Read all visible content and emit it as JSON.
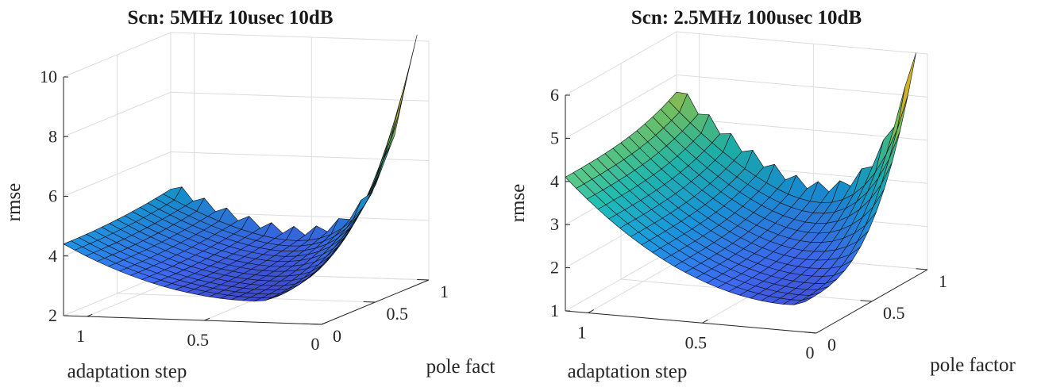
{
  "figure": {
    "background": "#ffffff",
    "colormap": "parula",
    "colormap_stops": [
      "#3e26a8",
      "#3f6bf4",
      "#1a9ae1",
      "#20bfb5",
      "#7ad06c",
      "#e3c52c",
      "#f9fb15"
    ]
  },
  "chart_data": [
    {
      "type": "surface",
      "title": "Scn: 5MHz 10usec 10dB",
      "xlabel": "adaptation step",
      "ylabel": "pole fact",
      "zlabel": "rmse",
      "xlim": [
        0,
        1.1
      ],
      "ylim": [
        0,
        1
      ],
      "zlim": [
        2,
        10
      ],
      "x_ticks": [
        "1",
        "0.5",
        "0"
      ],
      "y_ticks": [
        "0",
        "0.5",
        "1"
      ],
      "z_ticks": [
        "2",
        "4",
        "6",
        "8",
        "10"
      ],
      "grid": true,
      "surface_model": {
        "adaptation_step_range": [
          0.05,
          1.1
        ],
        "pole_factor_range": [
          0,
          1
        ],
        "rmse_at_pole_factor_0": {
          "at_step_1.1": 4.4,
          "minimum": 2.7,
          "at_step_0": 3.9
        },
        "rmse_growth_toward_pole_factor_1": {
          "at_step_1.1": 0.35,
          "at_step_0": 6.3
        },
        "zigzag_amplitude": 0.28
      },
      "series_description_points": [
        {
          "adaptation_step": 1.1,
          "pole_factor": 0,
          "rmse": 4.4
        },
        {
          "adaptation_step": 0.25,
          "pole_factor": 0,
          "rmse": 2.7
        },
        {
          "adaptation_step": 0.05,
          "pole_factor": 0,
          "rmse": 3.9
        },
        {
          "adaptation_step": 0.05,
          "pole_factor": 0.5,
          "rmse": 6.0
        },
        {
          "adaptation_step": 0.05,
          "pole_factor": 1,
          "rmse": 10.2
        }
      ]
    },
    {
      "type": "surface",
      "title": "Scn: 2.5MHz 100usec 10dB",
      "xlabel": "adaptation step",
      "ylabel": "pole factor",
      "zlabel": "rmse",
      "xlim": [
        0,
        1.1
      ],
      "ylim": [
        0,
        1
      ],
      "zlim": [
        1,
        6
      ],
      "x_ticks": [
        "1",
        "0.5",
        "0"
      ],
      "y_ticks": [
        "0",
        "0.5",
        "1"
      ],
      "z_ticks": [
        "1",
        "2",
        "3",
        "4",
        "5",
        "6"
      ],
      "grid": true,
      "surface_model": {
        "adaptation_step_range": [
          0.05,
          1.1
        ],
        "pole_factor_range": [
          0,
          1
        ],
        "rmse_at_pole_factor_0": {
          "at_step_1.1": 4.1,
          "minimum": 1.6,
          "at_step_0": 1.7
        },
        "rmse_growth_toward_pole_factor_1": {
          "at_step_1.1": 0.5,
          "at_step_0": 4.3
        },
        "zigzag_amplitude": 0.22
      },
      "series_description_points": [
        {
          "adaptation_step": 1.1,
          "pole_factor": 0,
          "rmse": 4.1
        },
        {
          "adaptation_step": 0.1,
          "pole_factor": 0,
          "rmse": 1.6
        },
        {
          "adaptation_step": 0.05,
          "pole_factor": 0.5,
          "rmse": 3.2
        },
        {
          "adaptation_step": 0.05,
          "pole_factor": 1,
          "rmse": 6.0
        }
      ]
    }
  ]
}
